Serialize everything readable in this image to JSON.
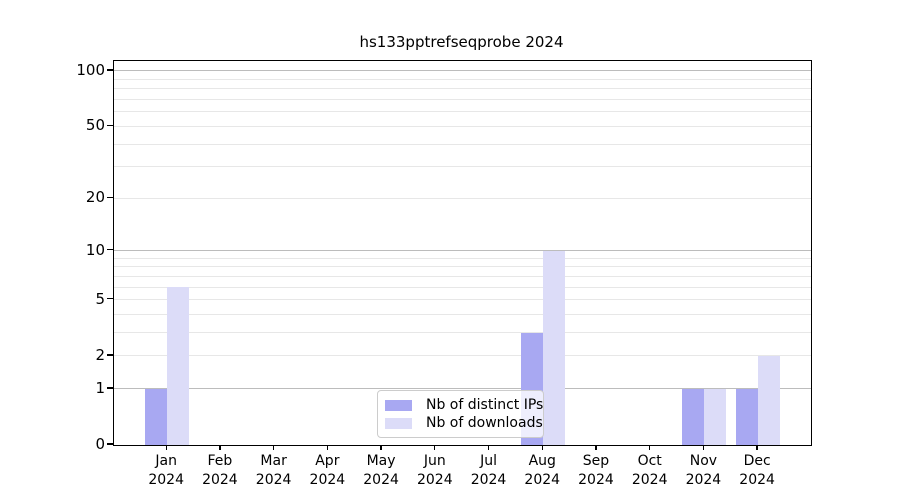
{
  "title": "hs133pptrefseqprobe 2024",
  "chart_data": {
    "type": "bar",
    "title": "hs133pptrefseqprobe 2024",
    "y_scale": "log10(1+y)",
    "categories": [
      "Jan",
      "Feb",
      "Mar",
      "Apr",
      "May",
      "Jun",
      "Jul",
      "Aug",
      "Sep",
      "Oct",
      "Nov",
      "Dec"
    ],
    "category_year": "2024",
    "series": [
      {
        "name": "Nb of distinct IPs",
        "color": "#a8a8f2",
        "values": [
          1,
          0,
          0,
          0,
          0,
          0,
          0,
          3,
          0,
          0,
          1,
          1
        ]
      },
      {
        "name": "Nb of downloads",
        "color": "#dcdcf8",
        "values": [
          6,
          0,
          0,
          0,
          0,
          0,
          0,
          10,
          0,
          0,
          1,
          2
        ]
      }
    ],
    "y_ticks": [
      100,
      50,
      20,
      10,
      5,
      2,
      1,
      0
    ],
    "y_major_gridlines": [
      1,
      10,
      100
    ],
    "y_minor_gridlines": [
      2,
      3,
      4,
      5,
      6,
      7,
      8,
      9,
      20,
      30,
      40,
      50,
      60,
      70,
      80,
      90
    ],
    "ylim": [
      0,
      113
    ],
    "grid": true,
    "legend_position": "bottom-center-inside",
    "colors": {
      "major_gridline": "#bcbcbc",
      "minor_gridline": "#e7e7e7",
      "axis": "#000000",
      "background": "#ffffff"
    }
  }
}
